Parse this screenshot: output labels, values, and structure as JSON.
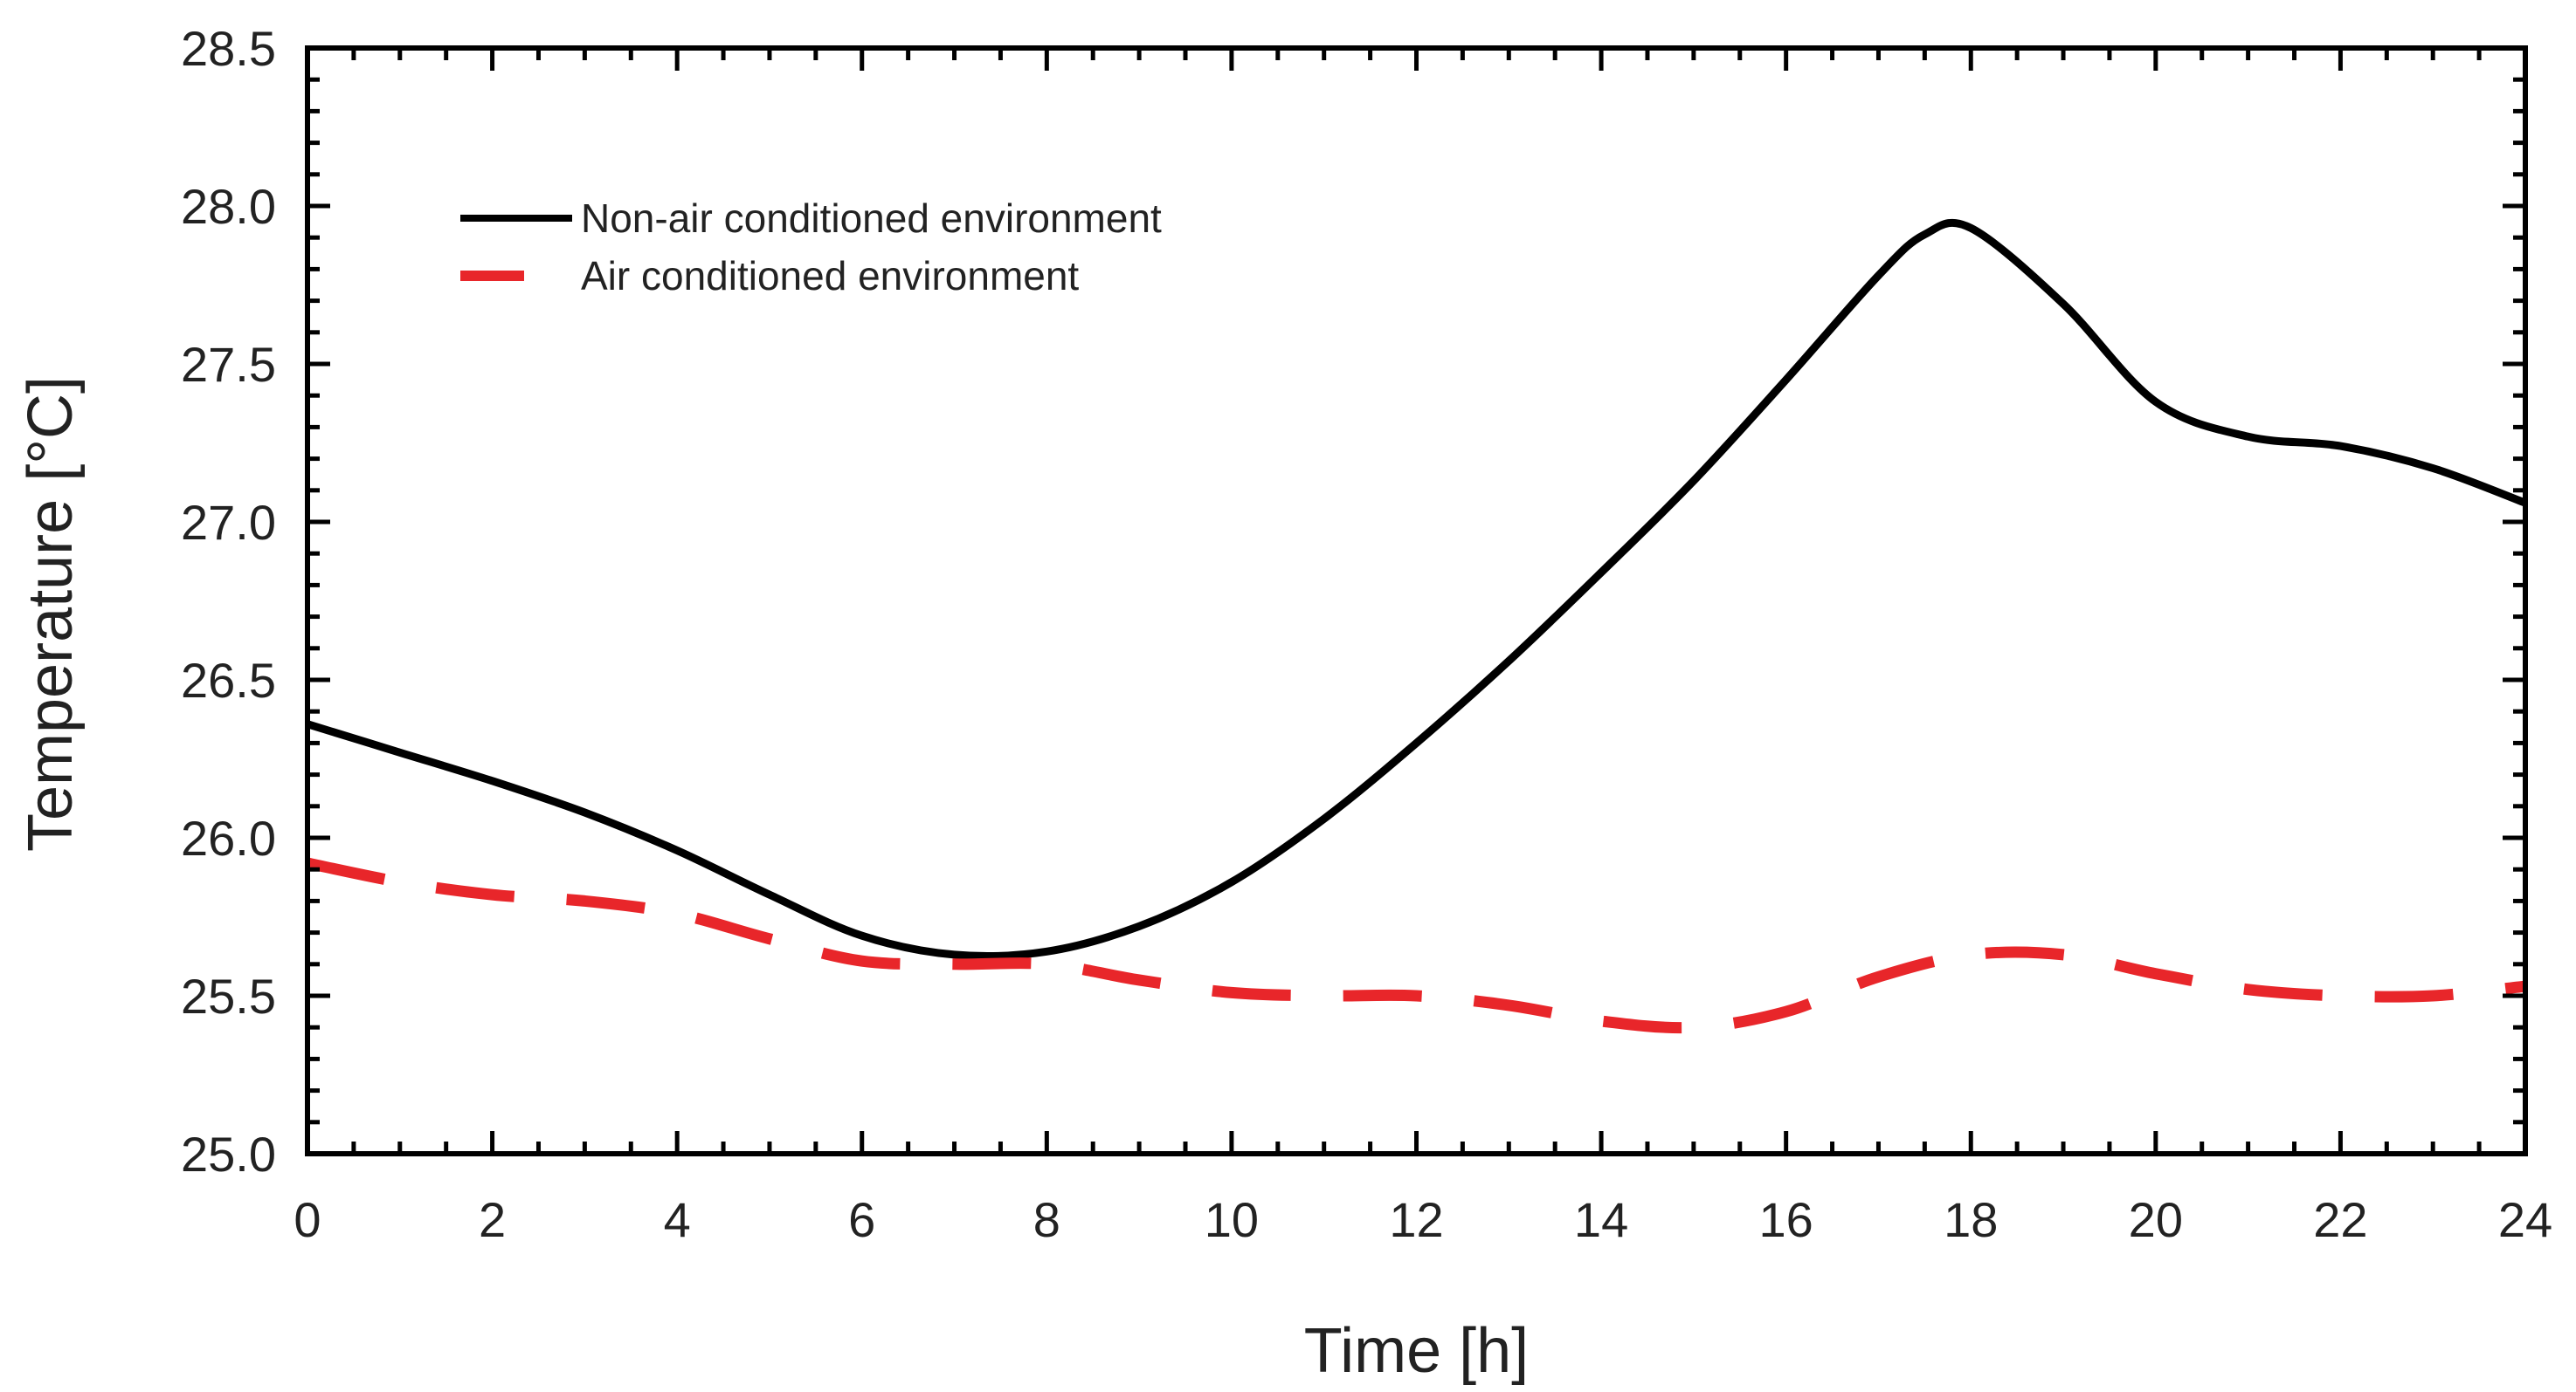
{
  "chart_data": {
    "type": "line",
    "title": "",
    "xlabel": "Time [h]",
    "ylabel": "Temperature [°C]",
    "xlim": [
      0,
      24
    ],
    "ylim": [
      25.0,
      28.5
    ],
    "xticks": [
      0,
      2,
      4,
      6,
      8,
      10,
      12,
      14,
      16,
      18,
      20,
      22,
      24
    ],
    "xtick_labels": [
      "0",
      "2",
      "4",
      "6",
      "8",
      "10",
      "12",
      "14",
      "16",
      "18",
      "20",
      "22",
      "24"
    ],
    "yticks": [
      25.0,
      25.5,
      26.0,
      26.5,
      27.0,
      27.5,
      28.0,
      28.5
    ],
    "ytick_labels": [
      "25.0",
      "25.5",
      "26.0",
      "26.5",
      "27.0",
      "27.5",
      "28.0",
      "28.5"
    ],
    "grid": false,
    "legend_position": "top-left",
    "series": [
      {
        "name": "Non-air conditioned environment",
        "color": "#000000",
        "style": "solid",
        "x": [
          0,
          1,
          2,
          3,
          4,
          5,
          6,
          7,
          8,
          9,
          10,
          11,
          12,
          13,
          14,
          15,
          16,
          17,
          17.5,
          18,
          19,
          20,
          21,
          22,
          23,
          24
        ],
        "y": [
          26.36,
          26.27,
          26.18,
          26.08,
          25.96,
          25.82,
          25.69,
          25.63,
          25.64,
          25.72,
          25.86,
          26.06,
          26.3,
          26.56,
          26.84,
          27.13,
          27.45,
          27.78,
          27.91,
          27.93,
          27.69,
          27.38,
          27.27,
          27.24,
          27.17,
          27.06
        ]
      },
      {
        "name": "Air conditioned environment",
        "color": "#e8262a",
        "style": "dashed",
        "x": [
          0,
          1,
          2,
          3,
          4,
          5,
          6,
          7,
          8,
          9,
          10,
          11,
          12,
          13,
          14,
          15,
          16,
          17,
          18,
          19,
          20,
          21,
          22,
          23,
          24
        ],
        "y": [
          25.92,
          25.86,
          25.82,
          25.8,
          25.76,
          25.68,
          25.61,
          25.6,
          25.6,
          25.55,
          25.51,
          25.5,
          25.5,
          25.47,
          25.42,
          25.4,
          25.45,
          25.56,
          25.63,
          25.63,
          25.57,
          25.52,
          25.5,
          25.5,
          25.53
        ]
      }
    ]
  }
}
